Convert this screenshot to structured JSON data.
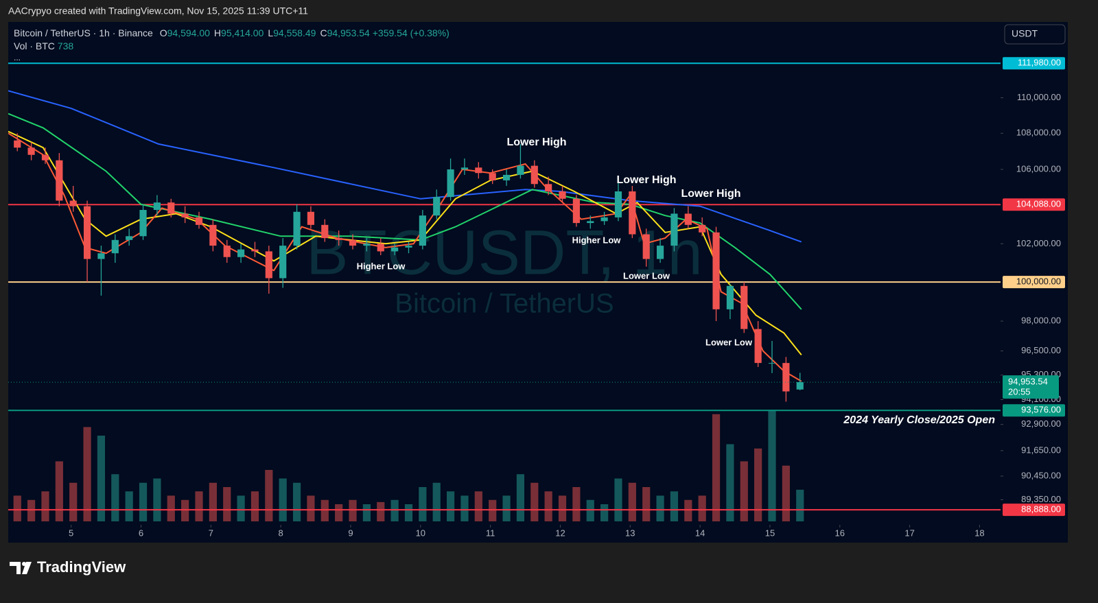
{
  "chart_data": {
    "type": "candlestick",
    "attribution": "AACrypyo created with TradingView.com, Nov 15, 2025 11:39 UTC+11",
    "symbol": "Bitcoin / TetherUS · 1h · Binance",
    "ohlc_header": [
      {
        "key": "O",
        "text": "94,594.00"
      },
      {
        "key": "H",
        "text": "95,414.00"
      },
      {
        "key": "L",
        "text": "94,558.49"
      },
      {
        "key": "C",
        "text": "94,953.54"
      }
    ],
    "change": "+359.54 (+0.38%)",
    "volume_legend": "Vol · BTC",
    "volume_legend_value": "738",
    "more": "...",
    "currency": "USDT",
    "watermark": "BTCUSDT, 1h",
    "watermark_sub": "Bitcoin / TetherUS",
    "brand": "TradingView",
    "log_scale": true,
    "xlim": [
      4.1,
      18.3
    ],
    "xticks": [
      5,
      6,
      7,
      8,
      9,
      10,
      11,
      12,
      13,
      14,
      15,
      16,
      17,
      18
    ],
    "ylim": [
      88200,
      114400
    ],
    "yticks": [
      {
        "value": 110000,
        "label": "110,000.00"
      },
      {
        "value": 108000,
        "label": "108,000.00"
      },
      {
        "value": 106000,
        "label": "106,000.00"
      },
      {
        "value": 102000,
        "label": "102,000.00"
      },
      {
        "value": 98000,
        "label": "98,000.00"
      },
      {
        "value": 96500,
        "label": "96,500.00"
      },
      {
        "value": 95300,
        "label": "95,300.00"
      },
      {
        "value": 94100,
        "label": "94,100.00"
      },
      {
        "value": 92900,
        "label": "92,900.00"
      },
      {
        "value": 91650,
        "label": "91,650.00"
      },
      {
        "value": 90450,
        "label": "90,450.00"
      },
      {
        "value": 89350,
        "label": "89,350.00"
      }
    ],
    "up_color": "#26a69a",
    "down_color": "#ef5350",
    "x": [
      4.23,
      4.43,
      4.63,
      4.83,
      5.03,
      5.23,
      5.43,
      5.63,
      5.83,
      6.03,
      6.23,
      6.43,
      6.63,
      6.83,
      7.03,
      7.23,
      7.43,
      7.63,
      7.83,
      8.03,
      8.23,
      8.43,
      8.63,
      8.83,
      9.03,
      9.23,
      9.43,
      9.63,
      9.83,
      10.03,
      10.23,
      10.43,
      10.63,
      10.83,
      11.03,
      11.23,
      11.43,
      11.63,
      11.83,
      12.03,
      12.23,
      12.43,
      12.63,
      12.83,
      13.03,
      13.23,
      13.43,
      13.63,
      13.83,
      14.03,
      14.23,
      14.43,
      14.63,
      14.83,
      15.03,
      15.23,
      15.43
    ],
    "open": [
      107600,
      107200,
      106800,
      106500,
      104300,
      104000,
      101200,
      101500,
      102200,
      102400,
      103800,
      104200,
      103600,
      103400,
      103000,
      101900,
      101300,
      101700,
      101600,
      100200,
      101900,
      103700,
      103000,
      102300,
      102200,
      101900,
      102000,
      101600,
      101800,
      101900,
      103500,
      104500,
      106000,
      106100,
      105800,
      105400,
      105700,
      106200,
      105200,
      104800,
      104400,
      103100,
      103200,
      103400,
      104800,
      102500,
      101200,
      101900,
      103600,
      103000,
      102600,
      98600,
      99800,
      97600,
      95900,
      95900,
      94594
    ],
    "high": [
      108000,
      107500,
      107200,
      106900,
      105100,
      104300,
      101900,
      102500,
      102800,
      104100,
      104600,
      104400,
      104000,
      103700,
      103300,
      102200,
      102000,
      102100,
      101900,
      102300,
      104100,
      104000,
      103300,
      102700,
      102500,
      102300,
      102300,
      102000,
      102100,
      103800,
      104900,
      106600,
      106600,
      106400,
      106000,
      106000,
      107400,
      106500,
      105600,
      105100,
      104600,
      103500,
      103700,
      105300,
      105100,
      102800,
      102300,
      103900,
      104000,
      103400,
      102900,
      99900,
      100000,
      98000,
      97000,
      96200,
      95414
    ],
    "low": [
      107000,
      106500,
      106300,
      104000,
      103700,
      100000,
      99300,
      101000,
      101900,
      102200,
      103500,
      103400,
      103100,
      102800,
      101600,
      101000,
      101000,
      101300,
      99400,
      99700,
      101700,
      102800,
      102100,
      101900,
      101700,
      101600,
      101400,
      101400,
      101500,
      101700,
      103300,
      104300,
      105700,
      105500,
      105200,
      105100,
      105500,
      105000,
      104600,
      104200,
      102900,
      102800,
      103000,
      103200,
      102300,
      100800,
      101000,
      101600,
      102800,
      102400,
      98000,
      98100,
      97400,
      95700,
      95400,
      94000,
      94558.49
    ],
    "close": [
      107200,
      106800,
      106500,
      104300,
      104000,
      101200,
      101500,
      102200,
      102400,
      103800,
      104200,
      103600,
      103400,
      103000,
      101900,
      101300,
      101700,
      101600,
      100200,
      101900,
      103700,
      103000,
      102300,
      102200,
      101900,
      102000,
      101600,
      101800,
      101900,
      103500,
      104500,
      106000,
      106100,
      105800,
      105400,
      105700,
      106200,
      105200,
      104800,
      104400,
      103100,
      103200,
      103400,
      104800,
      102500,
      101200,
      101900,
      103600,
      103000,
      102600,
      98600,
      99800,
      97600,
      95900,
      95900,
      94500,
      94953.54
    ],
    "volume": [
      600,
      500,
      700,
      1400,
      900,
      2200,
      2000,
      1100,
      700,
      900,
      1000,
      600,
      500,
      700,
      900,
      800,
      600,
      700,
      1200,
      1000,
      900,
      600,
      500,
      400,
      500,
      400,
      450,
      500,
      400,
      800,
      900,
      700,
      600,
      700,
      500,
      600,
      1100,
      900,
      700,
      600,
      800,
      500,
      400,
      1000,
      900,
      800,
      600,
      700,
      500,
      600,
      2500,
      1800,
      1400,
      1700,
      2600,
      1300,
      738
    ],
    "volume_lim": [
      0,
      2800
    ],
    "indicators": [
      {
        "color": "#2962ff",
        "x": [
          4.1,
          5,
          6.25,
          7.9,
          10,
          11.5,
          12,
          13,
          14,
          15,
          15.45
        ],
        "values": [
          110400,
          109400,
          107400,
          106100,
          104400,
          104900,
          104800,
          104300,
          104000,
          102700,
          102100
        ]
      },
      {
        "color": "#22d36b",
        "x": [
          4.1,
          4.6,
          5.5,
          6,
          7,
          8,
          9,
          10,
          10.5,
          11,
          11.6,
          12.5,
          13,
          13.5,
          14,
          14.5,
          15,
          15.45
        ],
        "values": [
          109100,
          108300,
          105900,
          104100,
          103300,
          102400,
          102400,
          102200,
          102900,
          103800,
          104900,
          104200,
          104100,
          103500,
          103100,
          101800,
          100400,
          98600
        ]
      },
      {
        "color": "#ffe11a",
        "x": [
          4.1,
          4.6,
          5.2,
          5.5,
          6,
          6.5,
          7,
          7.9,
          8.5,
          9.5,
          10,
          10.5,
          11,
          11.6,
          12.2,
          12.8,
          13.1,
          13.5,
          14,
          14.3,
          14.8,
          15.2,
          15.45
        ],
        "values": [
          108100,
          107200,
          103300,
          102400,
          103300,
          103600,
          102900,
          101100,
          102400,
          102000,
          102200,
          104400,
          105400,
          105900,
          104800,
          103600,
          104200,
          102600,
          102900,
          100400,
          98300,
          97400,
          96300
        ]
      },
      {
        "color": "#ff5a36",
        "x": [
          4.1,
          4.6,
          4.9,
          5.2,
          5.5,
          6,
          6.3,
          6.8,
          7.2,
          7.9,
          8.3,
          8.8,
          9.5,
          9.9,
          10.3,
          10.6,
          11,
          11.5,
          11.8,
          12.3,
          12.8,
          13,
          13.2,
          13.5,
          13.8,
          14.1,
          14.3,
          14.6,
          14.9,
          15.2,
          15.45
        ],
        "values": [
          108000,
          106800,
          104600,
          101800,
          101500,
          102600,
          103900,
          103300,
          101900,
          100600,
          102900,
          102300,
          101800,
          102000,
          104200,
          106000,
          105800,
          106300,
          105000,
          103300,
          103600,
          104600,
          102000,
          102300,
          103300,
          102800,
          99500,
          98900,
          96500,
          95500,
          95000
        ]
      }
    ],
    "price_lines": [
      {
        "value": 111980,
        "label": "111,980.00",
        "color": "#00bcd4"
      },
      {
        "value": 104088,
        "label": "104,088.00",
        "color": "#f23645"
      },
      {
        "value": 100000,
        "label": "100,000.00",
        "color": "#ffd08a"
      },
      {
        "value": 93576,
        "label": "93,576.00",
        "color": "#089981"
      },
      {
        "value": 88888,
        "label": "88,888.00",
        "color": "#f23645"
      }
    ],
    "price_line_note": "2024 Yearly Close/2025 Open",
    "last_price": {
      "value": 94953.54,
      "label": "94,953.54",
      "countdown": "20:55",
      "color": "#089981"
    },
    "annotations": [
      "Lower High",
      "Lower High",
      "Lower High",
      "Higher Low",
      "Higher Low",
      "Lower Low",
      "Lower Low"
    ]
  }
}
